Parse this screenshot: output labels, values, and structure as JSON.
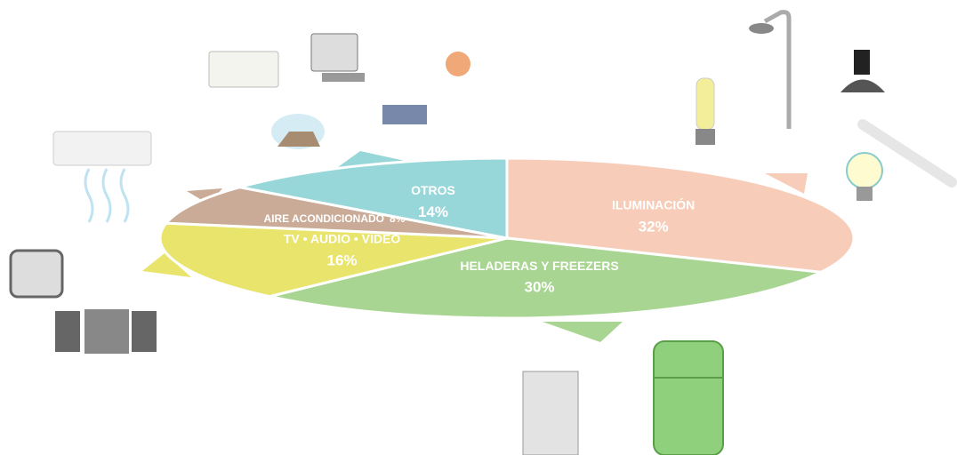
{
  "chart_data": {
    "type": "pie",
    "categories": [
      "ILUMINACIÓN",
      "HELADERAS Y FREEZERS",
      "TV • AUDIO • VIDEO",
      "AIRE ACONDICIONADO",
      "OTROS"
    ],
    "values": [
      32,
      30,
      16,
      8,
      14
    ],
    "value_labels": [
      "32%",
      "30%",
      "16%",
      "8%",
      "14%"
    ],
    "colors": [
      "#f7cdb9",
      "#a8d591",
      "#e9e46c",
      "#c9ab97",
      "#98d7d9"
    ]
  }
}
